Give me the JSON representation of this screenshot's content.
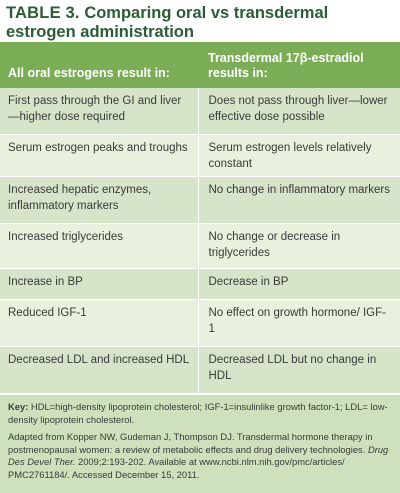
{
  "title": {
    "label": "TABLE 3.",
    "text": "Comparing oral vs transdermal estrogen administration"
  },
  "table": {
    "headers": [
      "All oral estrogens result in:",
      "Transdermal 17β-estradiol results in:"
    ],
    "rows": [
      [
        "First pass through the GI and liver—higher dose required",
        "Does not pass through liver—lower effective dose possible"
      ],
      [
        "Serum estrogen peaks and troughs",
        "Serum estrogen levels relatively constant"
      ],
      [
        "Increased hepatic enzymes, inflammatory markers",
        "No change in inflammatory markers"
      ],
      [
        "Increased triglycerides",
        "No change or decrease in triglycerides"
      ],
      [
        "Increase in BP",
        "Decrease in BP"
      ],
      [
        "Reduced IGF-1",
        "No effect on growth hormone/ IGF-1"
      ],
      [
        "Decreased LDL and increased HDL",
        "Decreased LDL but no change in HDL"
      ]
    ]
  },
  "notes": {
    "key_label": "Key:",
    "key_text": " HDL=high-density lipoprotein cholesterol; IGF-1=insulinlike growth factor-1; LDL= low-density lipoprotein cholesterol.",
    "source_text": "Adapted from Kopper NW, Gudeman J, Thompson DJ. Transdermal hormone therapy in postmenopausal women: a review of metabolic effects and drug delivery technologies. ",
    "source_journal": "Drug Des Devel Ther.",
    "source_tail": " 2009;2:193-202. Available at www.ncbi.nlm.nih.gov/pmc/articles/ PMC2761184/. Accessed December 15, 2011."
  }
}
